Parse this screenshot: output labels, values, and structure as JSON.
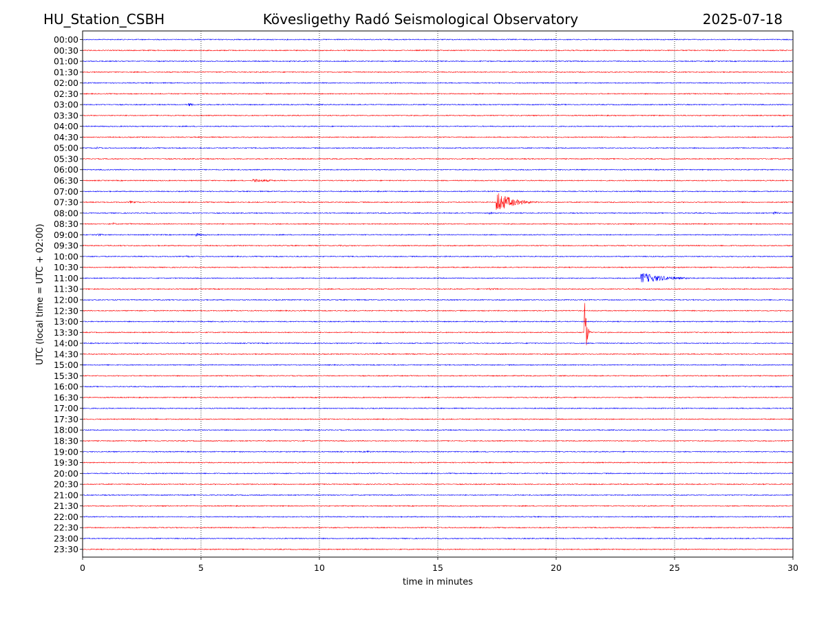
{
  "header": {
    "station": "HU_Station_CSBH",
    "observatory": "Kövesligethy Radó Seismological Observatory",
    "date": "2025-07-18"
  },
  "chart_data": {
    "type": "line",
    "subtype": "helicorder",
    "xlabel": "time in minutes",
    "ylabel": "UTC (local time = UTC + 02:00)",
    "xlim": [
      0,
      30
    ],
    "x_ticks": [
      "0",
      "5",
      "10",
      "15",
      "20",
      "25",
      "30"
    ],
    "vertical_gridlines_at_minutes": [
      5,
      10,
      15,
      20,
      25
    ],
    "grid": "vertical dotted",
    "row_labels": [
      "00:00",
      "00:30",
      "01:00",
      "01:30",
      "02:00",
      "02:30",
      "03:00",
      "03:30",
      "04:00",
      "04:30",
      "05:00",
      "05:30",
      "06:00",
      "06:30",
      "07:00",
      "07:30",
      "08:00",
      "08:30",
      "09:00",
      "09:30",
      "10:00",
      "10:30",
      "11:00",
      "11:30",
      "12:00",
      "12:30",
      "13:00",
      "13:30",
      "14:00",
      "14:30",
      "15:00",
      "15:30",
      "16:00",
      "16:30",
      "17:00",
      "17:30",
      "18:00",
      "18:30",
      "19:00",
      "19:30",
      "20:00",
      "20:30",
      "21:00",
      "21:30",
      "22:00",
      "22:30",
      "23:00",
      "23:30"
    ],
    "trace_colors": [
      "#0000ff",
      "#ff0000"
    ],
    "events": [
      {
        "row": "00:00",
        "minute": 24.5,
        "amplitude": 0.8,
        "duration": 0.4
      },
      {
        "row": "02:30",
        "minute": 1.2,
        "amplitude": 0.6,
        "duration": 0.3
      },
      {
        "row": "03:00",
        "minute": 4.5,
        "amplitude": 3.2,
        "duration": 0.4
      },
      {
        "row": "04:30",
        "minute": 22.6,
        "amplitude": 0.9,
        "duration": 2.0
      },
      {
        "row": "05:00",
        "minute": 0.6,
        "amplitude": 1.6,
        "duration": 0.9
      },
      {
        "row": "05:00",
        "minute": 2.7,
        "amplitude": 1.0,
        "duration": 0.6
      },
      {
        "row": "06:30",
        "minute": 7.2,
        "amplitude": 2.6,
        "duration": 2.0
      },
      {
        "row": "07:00",
        "minute": 12.5,
        "amplitude": 1.2,
        "duration": 0.4
      },
      {
        "row": "07:00",
        "minute": 23.4,
        "amplitude": 1.6,
        "duration": 0.6
      },
      {
        "row": "07:30",
        "minute": 2.0,
        "amplitude": 2.0,
        "duration": 0.9
      },
      {
        "row": "07:30",
        "minute": 17.5,
        "amplitude": 16.0,
        "duration": 1.4
      },
      {
        "row": "08:00",
        "minute": 17.2,
        "amplitude": 2.0,
        "duration": 0.4
      },
      {
        "row": "08:00",
        "minute": 25.9,
        "amplitude": 1.0,
        "duration": 1.0
      },
      {
        "row": "08:00",
        "minute": 29.2,
        "amplitude": 2.2,
        "duration": 0.7
      },
      {
        "row": "08:30",
        "minute": 1.3,
        "amplitude": 2.2,
        "duration": 0.3
      },
      {
        "row": "08:30",
        "minute": 2.0,
        "amplitude": 1.2,
        "duration": 0.4
      },
      {
        "row": "08:30",
        "minute": 8.2,
        "amplitude": 1.5,
        "duration": 0.5
      },
      {
        "row": "09:00",
        "minute": 0.6,
        "amplitude": 2.2,
        "duration": 0.6
      },
      {
        "row": "09:00",
        "minute": 4.8,
        "amplitude": 2.4,
        "duration": 0.9
      },
      {
        "row": "09:00",
        "minute": 15.0,
        "amplitude": 0.8,
        "duration": 0.3
      },
      {
        "row": "09:30",
        "minute": 10.8,
        "amplitude": 1.0,
        "duration": 4.0
      },
      {
        "row": "10:00",
        "minute": 4.4,
        "amplitude": 1.4,
        "duration": 1.2
      },
      {
        "row": "10:00",
        "minute": 15.3,
        "amplitude": 1.2,
        "duration": 0.5
      },
      {
        "row": "10:30",
        "minute": 7.2,
        "amplitude": 1.0,
        "duration": 2.0
      },
      {
        "row": "10:30",
        "minute": 24.6,
        "amplitude": 1.4,
        "duration": 0.4
      },
      {
        "row": "11:00",
        "minute": 23.6,
        "amplitude": 8.5,
        "duration": 2.2
      },
      {
        "row": "11:30",
        "minute": 17.2,
        "amplitude": 1.6,
        "duration": 1.5
      },
      {
        "row": "13:30",
        "minute": 21.2,
        "amplitude": 70.0,
        "duration": 0.15
      },
      {
        "row": "14:00",
        "minute": 18.9,
        "amplitude": 1.2,
        "duration": 0.4
      },
      {
        "row": "14:00",
        "minute": 26.7,
        "amplitude": 0.8,
        "duration": 0.4
      },
      {
        "row": "15:30",
        "minute": 16.5,
        "amplitude": 0.8,
        "duration": 0.6
      },
      {
        "row": "19:00",
        "minute": 12.0,
        "amplitude": 2.4,
        "duration": 0.5
      },
      {
        "row": "21:00",
        "minute": 6.0,
        "amplitude": 0.5,
        "duration": 0.3
      }
    ]
  }
}
